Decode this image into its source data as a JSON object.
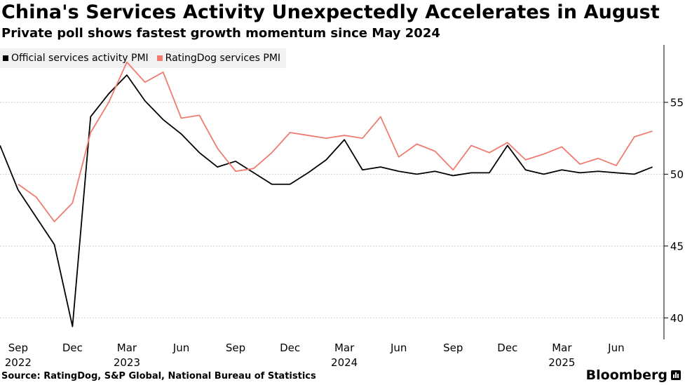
{
  "header": {
    "title": "China's Services Activity Unexpectedly Accelerates in August",
    "subtitle": "Private poll shows fastest growth momentum since May 2024"
  },
  "footer": {
    "source": "Source: RatingDog, S&P Global, National Bureau of Statistics",
    "brand": "Bloomberg",
    "brand_icon": "bloomberg-chart-icon"
  },
  "colors": {
    "official": "#000000",
    "ratingdog": "#f07b70",
    "grid": "#bdbdbd"
  },
  "chart_data": {
    "type": "line",
    "title": "China's Services Activity Unexpectedly Accelerates in August",
    "subtitle": "Private poll shows fastest growth momentum since May 2024",
    "xlabel": "",
    "ylabel": "",
    "ylim": [
      38.5,
      59
    ],
    "yticks": [
      40,
      45,
      50,
      55
    ],
    "y_axis_side": "right",
    "grid": "horizontal dotted",
    "legend_position": "top-left",
    "x_start_month": "2022-08",
    "x_ticks": [
      {
        "month": "Sep",
        "year": "2022",
        "index": 1
      },
      {
        "month": "Dec",
        "year": "",
        "index": 4
      },
      {
        "month": "Mar",
        "year": "2023",
        "index": 7
      },
      {
        "month": "Jun",
        "year": "",
        "index": 10
      },
      {
        "month": "Sep",
        "year": "",
        "index": 13
      },
      {
        "month": "Dec",
        "year": "",
        "index": 16
      },
      {
        "month": "Mar",
        "year": "2024",
        "index": 19
      },
      {
        "month": "Jun",
        "year": "",
        "index": 22
      },
      {
        "month": "Sep",
        "year": "",
        "index": 25
      },
      {
        "month": "Dec",
        "year": "",
        "index": 28
      },
      {
        "month": "Mar",
        "year": "2025",
        "index": 31
      },
      {
        "month": "Jun",
        "year": "",
        "index": 34
      }
    ],
    "series": [
      {
        "name": "Official services activity PMI",
        "key": "official",
        "start_index": 0,
        "values": [
          52.0,
          48.9,
          47.0,
          45.1,
          39.4,
          54.0,
          55.6,
          56.9,
          55.1,
          53.8,
          52.8,
          51.5,
          50.5,
          50.9,
          50.1,
          49.3,
          49.3,
          50.1,
          51.0,
          52.4,
          50.3,
          50.5,
          50.2,
          50.0,
          50.2,
          49.9,
          50.1,
          50.1,
          52.0,
          50.3,
          50.0,
          50.3,
          50.1,
          50.2,
          50.1,
          50.0,
          50.5
        ]
      },
      {
        "name": "RatingDog services PMI",
        "key": "ratingdog",
        "start_index": 1,
        "values": [
          49.3,
          48.4,
          46.7,
          48.0,
          52.9,
          55.0,
          57.8,
          56.4,
          57.1,
          53.9,
          54.1,
          51.8,
          50.2,
          50.4,
          51.5,
          52.9,
          52.7,
          52.5,
          52.7,
          52.5,
          54.0,
          51.2,
          52.1,
          51.6,
          50.3,
          52.0,
          51.5,
          52.2,
          51.0,
          51.4,
          51.9,
          50.7,
          51.1,
          50.6,
          52.6,
          53.0
        ]
      }
    ]
  }
}
